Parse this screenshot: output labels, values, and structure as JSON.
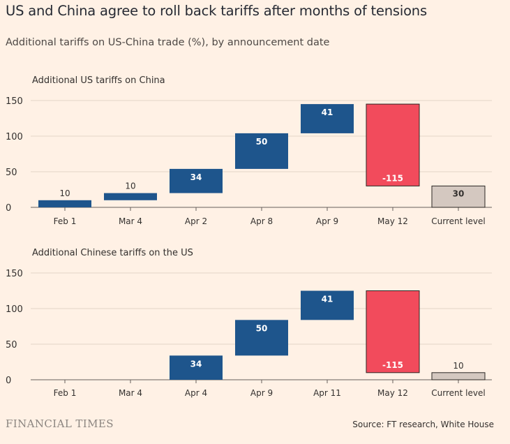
{
  "title": "US and China agree to roll back tariffs after months of tensions",
  "subtitle": "Additional tariffs on US-China trade (%), by announcement date",
  "source": "Source: FT research, White House",
  "brand": "FINANCIAL TIMES",
  "colors": {
    "increase": "#1e558c",
    "decrease": "#f24b5c",
    "total": "#d4c8c0",
    "grid": "#e3d5c8",
    "axis": "#66605c",
    "background": "#fff1e5"
  },
  "chart_data": [
    {
      "type": "waterfall",
      "title": "Additional US tariffs on China",
      "categories": [
        "Feb 1",
        "Mar 4",
        "Apr 2",
        "Apr 8",
        "Apr 9",
        "May 12",
        "Current level"
      ],
      "values": [
        10,
        10,
        34,
        50,
        41,
        -115,
        30
      ],
      "labels": [
        "10",
        "10",
        "34",
        "50",
        "41",
        "-115",
        "30"
      ],
      "kinds": [
        "increase",
        "increase",
        "increase",
        "increase",
        "increase",
        "decrease",
        "total"
      ],
      "yticks": [
        0,
        50,
        100,
        150
      ],
      "ylim": [
        0,
        150
      ],
      "grid": true
    },
    {
      "type": "waterfall",
      "title": "Additional Chinese tariffs on the US",
      "categories": [
        "Feb 1",
        "Mar 4",
        "Apr 4",
        "Apr 9",
        "Apr 11",
        "May 12",
        "Current level"
      ],
      "values": [
        null,
        null,
        34,
        50,
        41,
        -115,
        10
      ],
      "labels": [
        "",
        "",
        "34",
        "50",
        "41",
        "-115",
        "10"
      ],
      "kinds": [
        "increase",
        "increase",
        "increase",
        "increase",
        "increase",
        "decrease",
        "total"
      ],
      "yticks": [
        0,
        50,
        100,
        150
      ],
      "ylim": [
        0,
        150
      ],
      "grid": true
    }
  ]
}
